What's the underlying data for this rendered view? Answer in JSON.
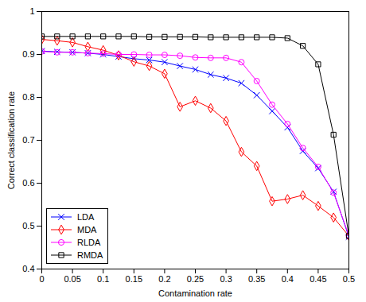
{
  "chart_data": {
    "type": "line",
    "x_label": "Contamination rate",
    "y_label": "Correct classification rate",
    "x": [
      0,
      0.025,
      0.05,
      0.075,
      0.1,
      0.125,
      0.15,
      0.175,
      0.2,
      0.225,
      0.25,
      0.275,
      0.3,
      0.325,
      0.35,
      0.375,
      0.4,
      0.425,
      0.45,
      0.475,
      0.5
    ],
    "series": [
      {
        "name": "LDA",
        "color": "#0000ff",
        "marker": "x",
        "values": [
          0.908,
          0.906,
          0.905,
          0.903,
          0.9,
          0.895,
          0.89,
          0.887,
          0.882,
          0.873,
          0.865,
          0.853,
          0.845,
          0.833,
          0.805,
          0.768,
          0.73,
          0.675,
          0.635,
          0.58,
          0.475
        ]
      },
      {
        "name": "MDA",
        "color": "#ff0000",
        "marker": "diamond",
        "values": [
          0.935,
          0.932,
          0.928,
          0.918,
          0.91,
          0.898,
          0.883,
          0.873,
          0.855,
          0.778,
          0.792,
          0.775,
          0.745,
          0.673,
          0.64,
          0.558,
          0.563,
          0.572,
          0.547,
          0.52,
          0.477
        ]
      },
      {
        "name": "RLDA",
        "color": "#ff00ff",
        "marker": "circle",
        "values": [
          0.907,
          0.905,
          0.905,
          0.903,
          0.902,
          0.9,
          0.9,
          0.899,
          0.899,
          0.897,
          0.893,
          0.892,
          0.892,
          0.882,
          0.838,
          0.783,
          0.738,
          0.682,
          0.638,
          0.578,
          0.478
        ]
      },
      {
        "name": "RMDA",
        "color": "#000000",
        "marker": "square",
        "values": [
          0.942,
          0.942,
          0.942,
          0.942,
          0.942,
          0.942,
          0.942,
          0.941,
          0.941,
          0.941,
          0.941,
          0.94,
          0.94,
          0.94,
          0.94,
          0.94,
          0.938,
          0.92,
          0.877,
          0.713,
          0.477
        ]
      }
    ],
    "xlim": [
      0,
      0.5
    ],
    "xticks": [
      0,
      0.05,
      0.1,
      0.15,
      0.2,
      0.25,
      0.3,
      0.35,
      0.4,
      0.45,
      0.5
    ],
    "ylim": [
      0.4,
      1
    ],
    "yticks": [
      0.4,
      0.5,
      0.6,
      0.7,
      0.8,
      0.9,
      1
    ],
    "grid": false,
    "legend": "lower left"
  }
}
